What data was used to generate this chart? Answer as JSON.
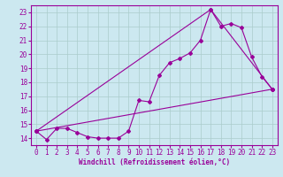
{
  "xlabel": "Windchill (Refroidissement éolien,°C)",
  "background_color": "#cce8f0",
  "grid_color": "#aacccc",
  "line_color": "#990099",
  "xlim": [
    -0.5,
    23.5
  ],
  "ylim": [
    13.5,
    23.5
  ],
  "x_ticks": [
    0,
    1,
    2,
    3,
    4,
    5,
    6,
    7,
    8,
    9,
    10,
    11,
    12,
    13,
    14,
    15,
    16,
    17,
    18,
    19,
    20,
    21,
    22,
    23
  ],
  "y_ticks": [
    14,
    15,
    16,
    17,
    18,
    19,
    20,
    21,
    22,
    23
  ],
  "series1_x": [
    0,
    1,
    2,
    3,
    4,
    5,
    6,
    7,
    8,
    9,
    10,
    11,
    12,
    13,
    14,
    15,
    16,
    17,
    18,
    19,
    20,
    21,
    22,
    23
  ],
  "series1_y": [
    14.5,
    13.9,
    14.7,
    14.7,
    14.4,
    14.1,
    14.0,
    14.0,
    14.0,
    14.5,
    16.7,
    16.6,
    18.5,
    19.4,
    19.7,
    20.1,
    21.0,
    23.2,
    22.0,
    22.2,
    21.9,
    19.8,
    18.4,
    17.5
  ],
  "series2_x": [
    0,
    17,
    23
  ],
  "series2_y": [
    14.5,
    23.2,
    17.5
  ],
  "series3_x": [
    0,
    23
  ],
  "series3_y": [
    14.5,
    17.5
  ],
  "marker_size": 2.0,
  "line_width": 0.8,
  "tick_fontsize": 5.5,
  "xlabel_fontsize": 5.5
}
